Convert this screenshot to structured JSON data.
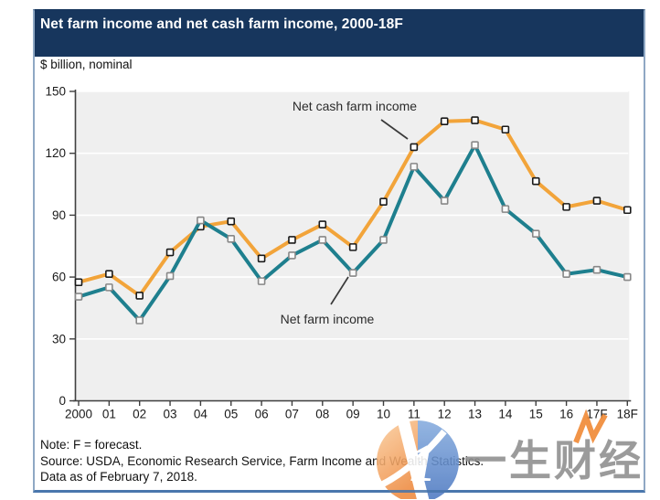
{
  "header": {
    "title": "Net farm income and net cash farm income, 2000-18F"
  },
  "chart": {
    "units_label": "$ billion, nominal"
  },
  "chart_data": {
    "type": "line",
    "title": "Net farm income and net cash farm income, 2000-18F",
    "ylabel": "$ billion, nominal",
    "categories": [
      "2000",
      "01",
      "02",
      "03",
      "04",
      "05",
      "06",
      "07",
      "08",
      "09",
      "10",
      "11",
      "12",
      "13",
      "14",
      "15",
      "16",
      "17F",
      "18F"
    ],
    "series": [
      {
        "name": "Net cash farm income",
        "color": "#F2A43A",
        "marker_fill": "#ffffff",
        "marker_stroke": "#1a1a1a",
        "values": [
          57.5,
          61.5,
          51,
          72,
          84.5,
          87,
          69,
          78,
          85.5,
          74.5,
          96.5,
          123,
          135.5,
          136,
          131.5,
          106.5,
          94,
          97,
          92.5
        ]
      },
      {
        "name": "Net farm income",
        "color": "#1E7F8E",
        "marker_fill": "#fafafa",
        "marker_stroke": "#888888",
        "values": [
          50.5,
          55,
          39,
          60.5,
          87.5,
          78.5,
          58,
          70.5,
          78,
          62,
          78,
          113.5,
          97,
          124,
          93,
          81,
          61.5,
          63.5,
          60
        ]
      }
    ],
    "ylim": [
      0,
      150
    ],
    "yticks": [
      0,
      30,
      60,
      90,
      120,
      150
    ],
    "grid": "horizontal-white-on-gray",
    "legend_position": "inline-annotations",
    "annotations": [
      {
        "text": "Net cash farm income",
        "x": 388,
        "y": 121,
        "line": [
          417,
          131,
          446,
          152
        ]
      },
      {
        "text": "Net farm income",
        "x": 358,
        "y": 354,
        "line": [
          362,
          333,
          381,
          303
        ]
      }
    ]
  },
  "footer": {
    "note": "Note: F = forecast.",
    "source": "Source: USDA, Economic Research Service, Farm Income and Wealth Statistics.",
    "data_as_of": "Data as of February 7, 2018."
  },
  "watermark": {
    "text": "一生财经"
  },
  "style": {
    "header_navy": "#17365D",
    "plot_bg": "#EFEFEF",
    "grid_color": "#FFFFFF",
    "axis_color": "#3F3F3F",
    "tick_label_color": "#1a1a1a",
    "annotation_color": "#2b2b2b",
    "watermark_gray": "#8E8E8E",
    "logo_orange": "#F08A3C",
    "logo_blue": "#4A76C0"
  }
}
